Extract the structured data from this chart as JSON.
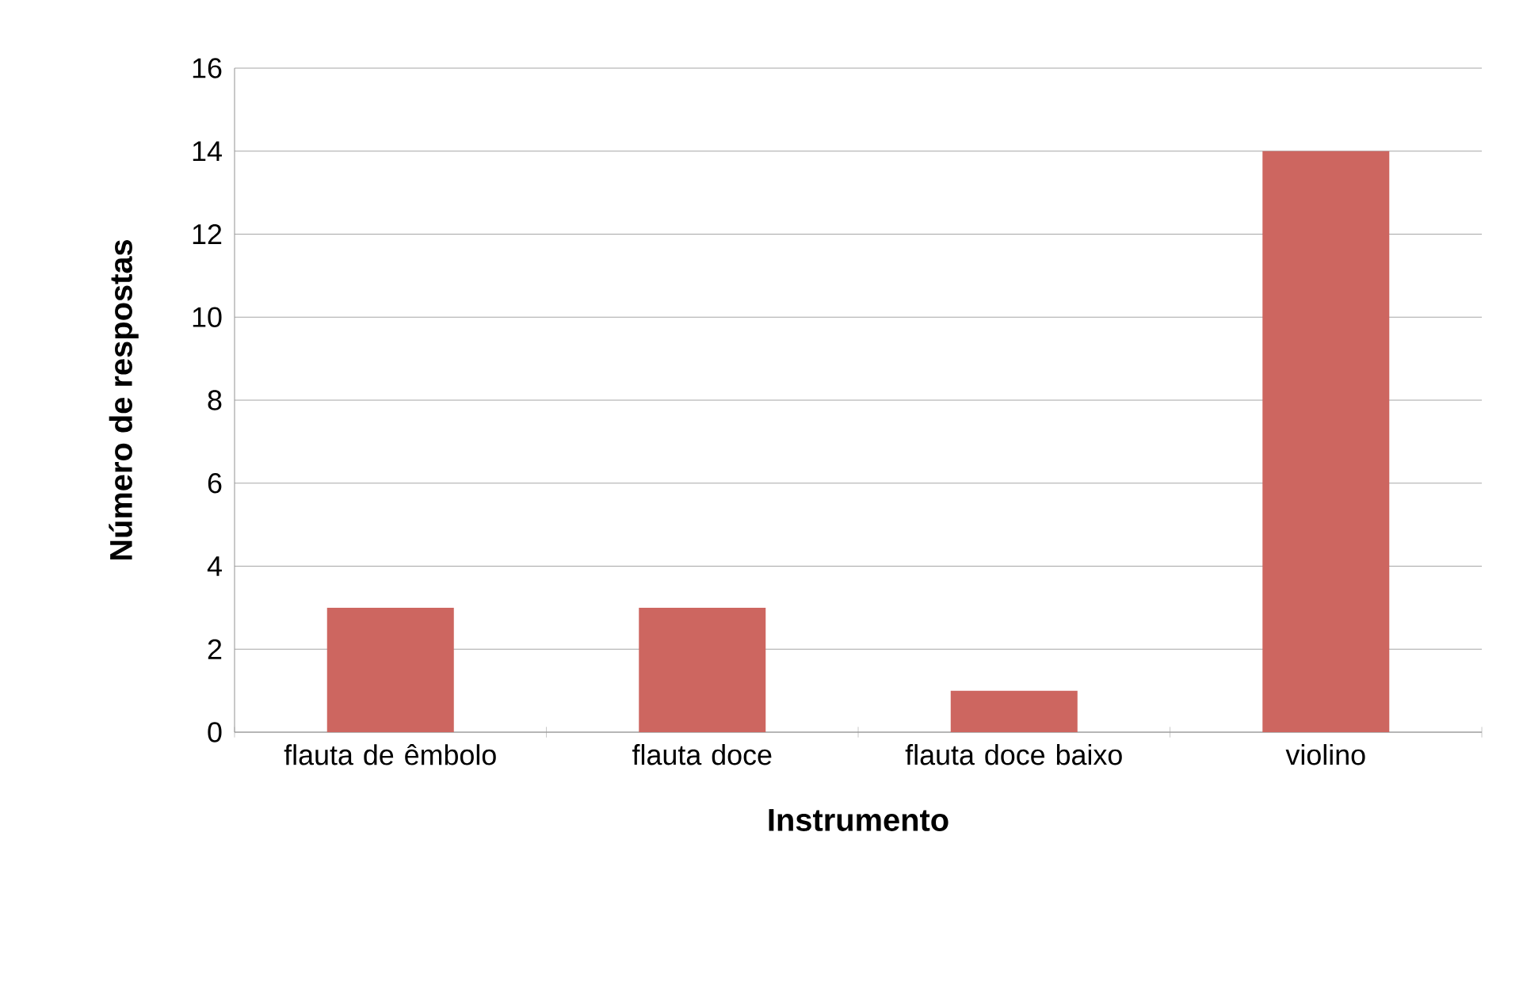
{
  "chart_data": {
    "type": "bar",
    "xlabel": "Instrumento",
    "ylabel": "Número de respostas",
    "categories": [
      "flauta de êmbolo",
      "flauta doce",
      "flauta doce baixo",
      "violino"
    ],
    "values": [
      3,
      3,
      1,
      14
    ],
    "color": "#cd6660",
    "ylim": [
      0,
      16
    ],
    "yticks": [
      0,
      2,
      4,
      6,
      8,
      10,
      12,
      14,
      16
    ],
    "grid": "y"
  }
}
